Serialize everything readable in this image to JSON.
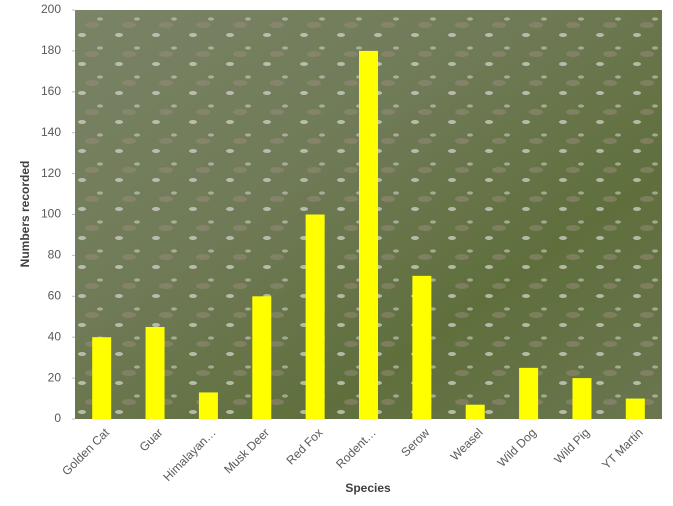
{
  "chart_data": {
    "type": "bar",
    "x_label": "Species",
    "y_label": "Numbers recorded",
    "categories": [
      "Golden Cat",
      "Guar",
      "Himalayan…",
      "Musk Deer",
      "Red Fox",
      "Rodent…",
      "Serow",
      "Weasel",
      "Wild Dog",
      "Wild Pig",
      "YT Martin"
    ],
    "values": [
      40,
      45,
      13,
      60,
      100,
      180,
      70,
      7,
      25,
      20,
      10
    ],
    "color": "#ffff00",
    "ylim": [
      0,
      200
    ],
    "yticks": [
      0,
      20,
      40,
      60,
      80,
      100,
      120,
      140,
      160,
      180,
      200
    ]
  }
}
